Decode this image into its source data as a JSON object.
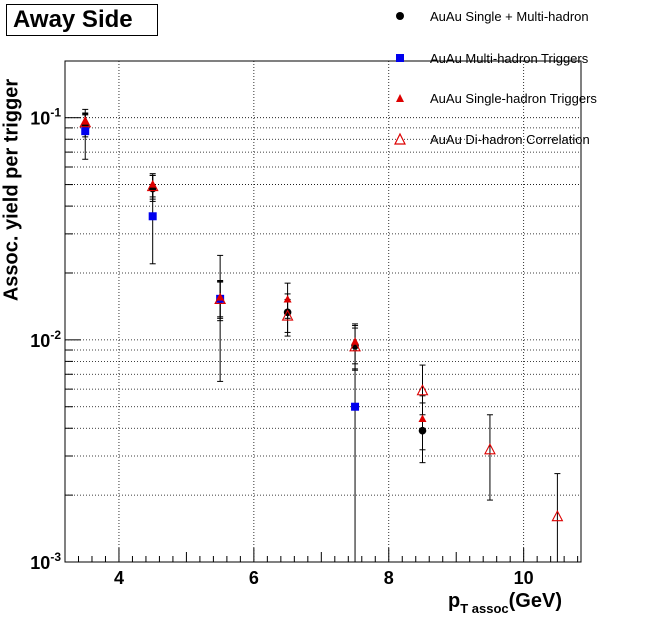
{
  "chart_data": {
    "type": "scatter",
    "title": "Away Side",
    "ylabel": "Assoc. yield per trigger",
    "xlabel_main": "p",
    "xlabel_sub": "T assoc",
    "xlabel_unit": "(GeV)",
    "xlim": [
      3.2,
      10.85
    ],
    "ylim": [
      0.001,
      0.18
    ],
    "yscale": "log",
    "grid": true,
    "legend_position": "top-right",
    "x_ticks": [
      4,
      6,
      8,
      10
    ],
    "x_tick_labels": [
      "4",
      "6",
      "8",
      "10"
    ],
    "y_ticks": [
      0.001,
      0.01,
      0.1
    ],
    "y_tick_labels": [
      "10-3",
      "10-2",
      "10-1"
    ],
    "series": [
      {
        "name": "AuAu Single + Multi-hadron",
        "marker": "circle",
        "color": "#000000",
        "points": [
          {
            "x": 3.5,
            "y": 0.093,
            "ylo": 0.082,
            "yhi": 0.105
          },
          {
            "x": 4.5,
            "y": 0.048,
            "ylo": 0.042,
            "yhi": 0.055
          },
          {
            "x": 5.5,
            "y": 0.0152,
            "ylo": 0.0127,
            "yhi": 0.0183
          },
          {
            "x": 6.5,
            "y": 0.0133,
            "ylo": 0.0108,
            "yhi": 0.0161
          },
          {
            "x": 7.5,
            "y": 0.0094,
            "ylo": 0.0074,
            "yhi": 0.0116
          },
          {
            "x": 8.5,
            "y": 0.0039,
            "ylo": 0.0028,
            "yhi": 0.0052
          }
        ]
      },
      {
        "name": "AuAu Multi-hadron Triggers",
        "marker": "square",
        "color": "#0000ee",
        "points": [
          {
            "x": 3.5,
            "y": 0.087,
            "ylo": 0.065,
            "yhi": 0.109
          },
          {
            "x": 4.5,
            "y": 0.036,
            "ylo": 0.022,
            "yhi": 0.05
          },
          {
            "x": 5.5,
            "y": 0.0153,
            "ylo": 0.0065,
            "yhi": 0.024
          },
          {
            "x": 7.5,
            "y": 0.005,
            "ylo": 0.0009,
            "yhi": 0.0095
          }
        ]
      },
      {
        "name": "AuAu Single-hadron Triggers",
        "marker": "triangle",
        "color": "#dd0000",
        "points": [
          {
            "x": 3.5,
            "y": 0.096,
            "ylo": 0.088,
            "yhi": 0.104
          },
          {
            "x": 4.5,
            "y": 0.05,
            "ylo": 0.044,
            "yhi": 0.056
          },
          {
            "x": 5.5,
            "y": 0.0155,
            "ylo": 0.0125,
            "yhi": 0.0185
          },
          {
            "x": 6.5,
            "y": 0.0152,
            "ylo": 0.0125,
            "yhi": 0.018
          },
          {
            "x": 7.5,
            "y": 0.0098,
            "ylo": 0.0078,
            "yhi": 0.0118
          },
          {
            "x": 8.5,
            "y": 0.0044,
            "ylo": 0.0032,
            "yhi": 0.0056
          }
        ]
      },
      {
        "name": "AuAu Di-hadron Correlation",
        "marker": "open-triangle",
        "color": "#dd0000",
        "points": [
          {
            "x": 3.5,
            "y": 0.095,
            "ylo": 0.087,
            "yhi": 0.103
          },
          {
            "x": 4.5,
            "y": 0.049,
            "ylo": 0.043,
            "yhi": 0.055
          },
          {
            "x": 5.5,
            "y": 0.0152,
            "ylo": 0.0122,
            "yhi": 0.0182
          },
          {
            "x": 6.5,
            "y": 0.0128,
            "ylo": 0.0104,
            "yhi": 0.0152
          },
          {
            "x": 7.5,
            "y": 0.0093,
            "ylo": 0.0073,
            "yhi": 0.0113
          },
          {
            "x": 8.5,
            "y": 0.0059,
            "ylo": 0.0046,
            "yhi": 0.0077
          },
          {
            "x": 9.5,
            "y": 0.0032,
            "ylo": 0.0019,
            "yhi": 0.0046
          },
          {
            "x": 10.5,
            "y": 0.0016,
            "ylo": 0.00085,
            "yhi": 0.0025
          }
        ]
      }
    ]
  }
}
